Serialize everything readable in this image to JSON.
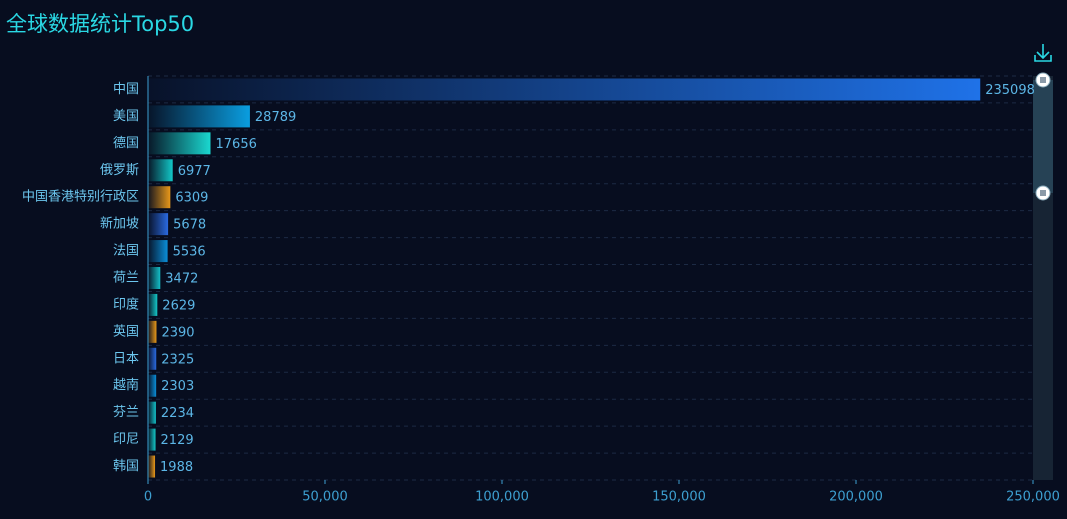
{
  "chart_data": {
    "type": "bar",
    "orientation": "horizontal",
    "title": "全球数据统计Top50",
    "categories": [
      "中国",
      "美国",
      "德国",
      "俄罗斯",
      "中国香港特别行政区",
      "新加坡",
      "法国",
      "荷兰",
      "印度",
      "英国",
      "日本",
      "越南",
      "芬兰",
      "印尼",
      "韩国"
    ],
    "values": [
      235098,
      28789,
      17656,
      6977,
      6309,
      5678,
      5536,
      3472,
      2629,
      2390,
      2325,
      2303,
      2234,
      2129,
      1988
    ],
    "colors": [
      "#1f72e8",
      "#0a9ee0",
      "#1ad8d0",
      "#12c8c8",
      "#e8981a",
      "#2a6ae0",
      "#0a8ed8",
      "#14c0c8",
      "#14c8c8",
      "#e8981a",
      "#2a6ae0",
      "#0a8ed8",
      "#14c0c8",
      "#14c8c8",
      "#e8981a"
    ],
    "xlim": [
      0,
      250000
    ],
    "xticks": [
      0,
      {
        "value": 50000,
        "label": "50,000"
      },
      {
        "value": 100000,
        "label": "100,000"
      },
      {
        "value": 150000,
        "label": "150,000"
      },
      {
        "value": 200000,
        "label": "200,000"
      },
      {
        "value": 250000,
        "label": "250,000"
      }
    ],
    "grid": true
  }
}
